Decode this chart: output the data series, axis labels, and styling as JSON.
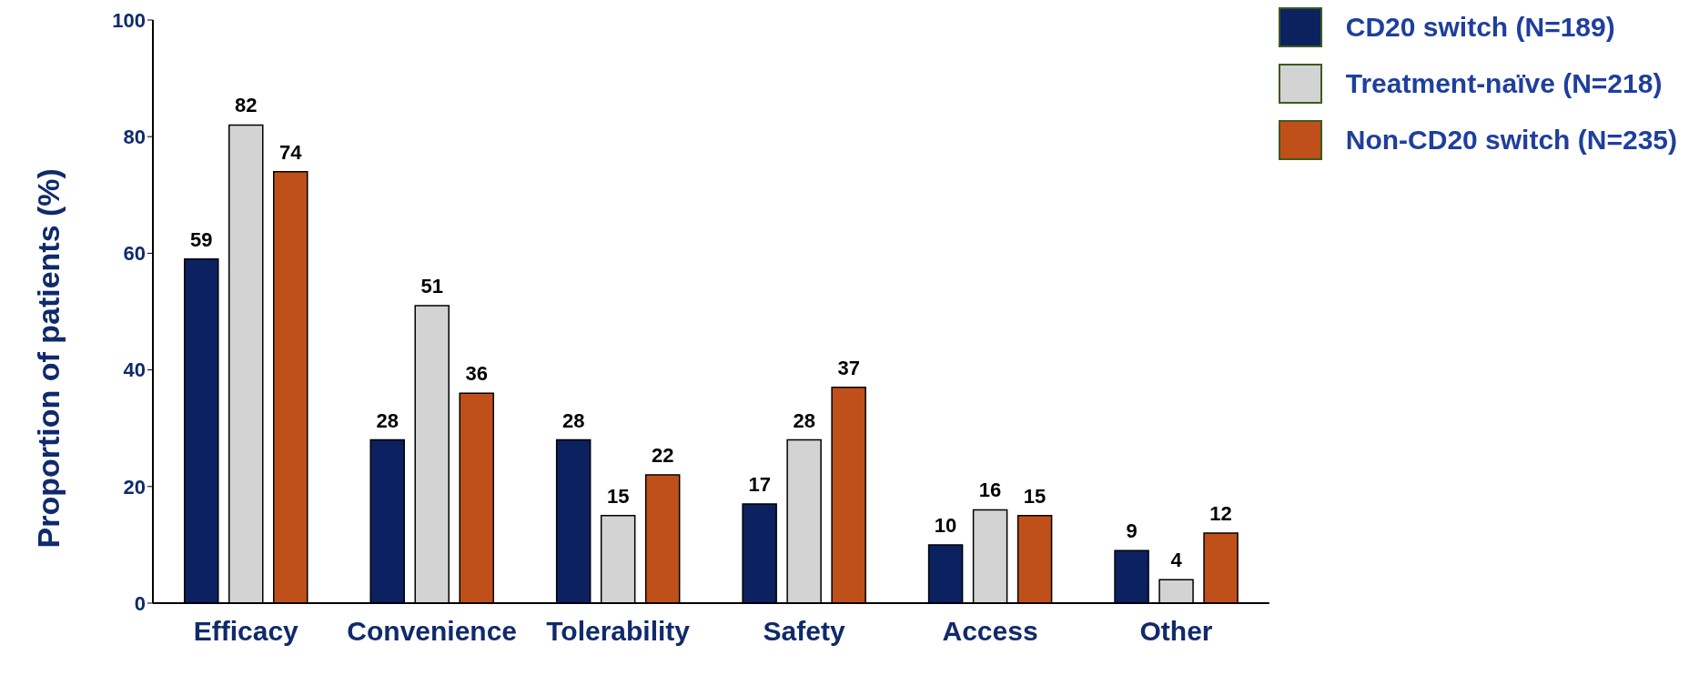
{
  "chart_data": {
    "type": "bar",
    "ylabel": "Proportion of patients (%)",
    "categories": [
      "Efficacy",
      "Convenience",
      "Tolerability",
      "Safety",
      "Access",
      "Other"
    ],
    "series": [
      {
        "name": "CD20 switch (N=189)",
        "color": "#0c2160",
        "values": [
          59,
          28,
          28,
          17,
          10,
          9
        ]
      },
      {
        "name": "Treatment-naïve (N=218)",
        "color": "#d3d3d3",
        "values": [
          82,
          51,
          15,
          28,
          16,
          4
        ]
      },
      {
        "name": "Non-CD20 switch (N=235)",
        "color": "#c0501a",
        "values": [
          74,
          36,
          22,
          37,
          15,
          12
        ]
      }
    ],
    "ylim": [
      0,
      100
    ],
    "yticks": [
      0,
      20,
      40,
      60,
      80,
      100
    ],
    "grid": false,
    "legend": "top right",
    "data_labels": true
  }
}
